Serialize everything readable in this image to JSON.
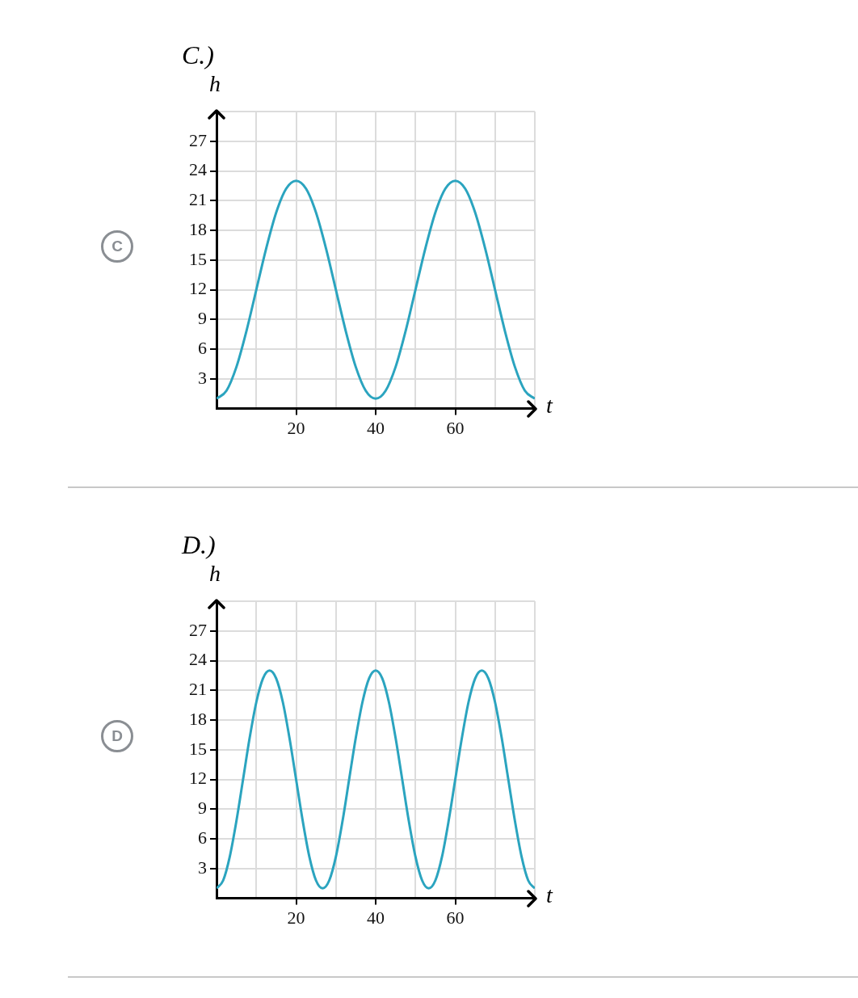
{
  "chart_data": [
    {
      "type": "line",
      "title": "C.)",
      "xlabel": "t",
      "ylabel": "h",
      "annotations": [
        "C"
      ],
      "grid": true,
      "marker": "none",
      "xlim": [
        0,
        80
      ],
      "ylim": [
        0,
        30
      ],
      "xticks": [
        {
          "value": 10,
          "label": null
        },
        20,
        {
          "value": 30,
          "label": null
        },
        40,
        {
          "value": 50,
          "label": null
        },
        60,
        {
          "value": 70,
          "label": null
        },
        {
          "value": 80,
          "label": null
        }
      ],
      "yticks": [
        3,
        6,
        9,
        12,
        15,
        18,
        21,
        24,
        27,
        {
          "value": 30,
          "label": null
        }
      ],
      "series": [
        {
          "color": "#2ba4bf",
          "x": [
            0,
            2.5,
            5,
            7.5,
            10,
            12.5,
            15,
            17.5,
            20,
            22.5,
            25,
            27.5,
            30,
            32.5,
            35,
            37.5,
            40,
            42.5,
            45,
            47.5,
            50,
            52.5,
            55,
            57.5,
            60,
            62.5,
            65,
            67.5,
            70,
            72.5,
            75,
            77.5,
            80
          ],
          "values": [
            1,
            1.8,
            4.2,
            7.8,
            12,
            16.2,
            19.8,
            22.2,
            23,
            22.2,
            19.8,
            16.2,
            12,
            7.8,
            4.2,
            1.8,
            1,
            1.8,
            4.2,
            7.8,
            12,
            16.2,
            19.8,
            22.2,
            23,
            22.2,
            19.8,
            16.2,
            12,
            7.8,
            4.2,
            1.8,
            1
          ]
        }
      ]
    },
    {
      "type": "line",
      "title": "D.)",
      "xlabel": "t",
      "ylabel": "h",
      "annotations": [
        "D"
      ],
      "grid": true,
      "marker": "none",
      "xlim": [
        0,
        80
      ],
      "ylim": [
        0,
        30
      ],
      "xticks": [
        {
          "value": 10,
          "label": null
        },
        20,
        {
          "value": 30,
          "label": null
        },
        40,
        {
          "value": 50,
          "label": null
        },
        60,
        {
          "value": 70,
          "label": null
        },
        {
          "value": 80,
          "label": null
        }
      ],
      "yticks": [
        3,
        6,
        9,
        12,
        15,
        18,
        21,
        24,
        27,
        {
          "value": 30,
          "label": null
        }
      ],
      "series": [
        {
          "color": "#2ba4bf",
          "x": [
            0,
            1.67,
            3.33,
            5,
            6.67,
            8.33,
            10,
            11.67,
            13.33,
            15,
            16.67,
            18.33,
            20,
            21.67,
            23.33,
            25,
            26.67,
            28.33,
            30,
            31.67,
            33.33,
            35,
            36.67,
            38.33,
            40,
            41.67,
            43.33,
            45,
            46.67,
            48.33,
            50,
            51.67,
            53.33,
            55,
            56.67,
            58.33,
            60,
            61.67,
            63.33,
            65,
            66.67,
            68.33,
            70,
            71.67,
            73.33,
            75,
            76.67,
            78.33,
            80
          ],
          "values": [
            1,
            1.8,
            4.2,
            7.8,
            12,
            16.2,
            19.8,
            22.2,
            23,
            22.2,
            19.8,
            16.2,
            12,
            7.8,
            4.2,
            1.8,
            1,
            1.8,
            4.2,
            7.8,
            12,
            16.2,
            19.8,
            22.2,
            23,
            22.2,
            19.8,
            16.2,
            12,
            7.8,
            4.2,
            1.8,
            1,
            1.8,
            4.2,
            7.8,
            12,
            16.2,
            19.8,
            22.2,
            23,
            22.2,
            19.8,
            16.2,
            12,
            7.8,
            4.2,
            1.8,
            1
          ]
        }
      ]
    }
  ]
}
